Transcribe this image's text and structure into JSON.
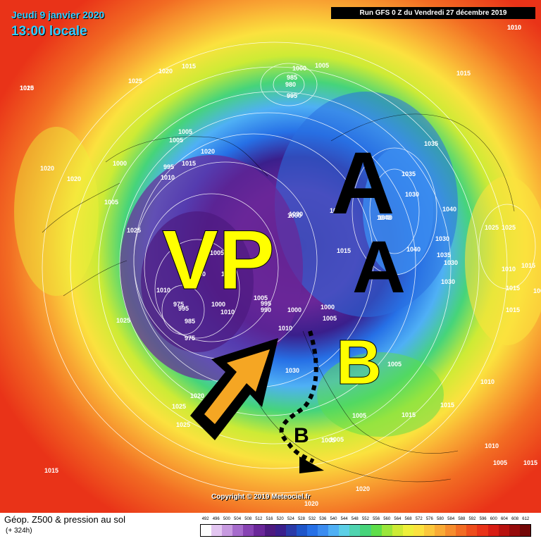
{
  "header": {
    "date": "Jeudi 9 janvier 2020",
    "time": "13:00 locale",
    "run": "Run GFS 0 Z du Vendredi 27 décembre 2019"
  },
  "annotations": {
    "vortex": "VP",
    "high_1": "A",
    "high_2": "A",
    "low_1": "B",
    "low_2": "B"
  },
  "isobars": [
    "1010",
    "1015",
    "1020",
    "1015",
    "1025",
    "1000",
    "1005",
    "985",
    "980",
    "995",
    "1015",
    "1005",
    "1035",
    "1035",
    "1030",
    "1040",
    "1040",
    "1030",
    "1035",
    "1025",
    "1025",
    "1010",
    "1015",
    "1020",
    "1020",
    "1005",
    "1000",
    "995",
    "1010",
    "1015",
    "1020",
    "1005",
    "1025",
    "1010",
    "1005",
    "1010",
    "1015",
    "1030",
    "1000",
    "1030",
    "1040",
    "1040",
    "1030",
    "1030",
    "975",
    "985",
    "995",
    "1000",
    "1010",
    "1005",
    "995",
    "990",
    "1000",
    "1000",
    "1005",
    "1015",
    "1025",
    "975",
    "1010",
    "1020",
    "1030",
    "1030",
    "1005",
    "1005",
    "1015",
    "1015",
    "1010",
    "1025",
    "1025",
    "1015",
    "1010",
    "1005",
    "1015",
    "1015",
    "1005",
    "1005",
    "1020",
    "1020",
    "1005",
    "1015",
    "1010",
    "1020"
  ],
  "footer": {
    "copyright": "Copyright © 2019 Meteociel.fr",
    "legend_title": "Géop. Z500 & pression au sol",
    "legend_sub": "(+ 324h)"
  },
  "scale": {
    "labels": [
      "492",
      "496",
      "500",
      "504",
      "508",
      "512",
      "516",
      "520",
      "524",
      "528",
      "532",
      "536",
      "540",
      "544",
      "548",
      "552",
      "556",
      "560",
      "564",
      "568",
      "572",
      "576",
      "580",
      "584",
      "588",
      "592",
      "596",
      "600",
      "604",
      "608",
      "612"
    ],
    "colors": [
      "#fdfdfd",
      "#e3c6f1",
      "#c79ae0",
      "#a66bcc",
      "#8743b3",
      "#6a2799",
      "#4d1a80",
      "#3a1f8c",
      "#2a3aa8",
      "#1e55c9",
      "#2670e6",
      "#3b8cf0",
      "#4fb0f5",
      "#5ccfe6",
      "#4fd4b0",
      "#46d47a",
      "#5ede4a",
      "#9ae63a",
      "#cdeb35",
      "#eef03a",
      "#fbe23e",
      "#fbc73b",
      "#f9aa34",
      "#f68c2c",
      "#f26c23",
      "#ee4d1c",
      "#e93318",
      "#d81d14",
      "#b8120f",
      "#960b0b",
      "#730707"
    ]
  },
  "colors": {
    "date_text": "#33ccff",
    "annotation_high": "#000000",
    "annotation_low": "#ffff00",
    "arrow_fill": "#f5a623"
  }
}
